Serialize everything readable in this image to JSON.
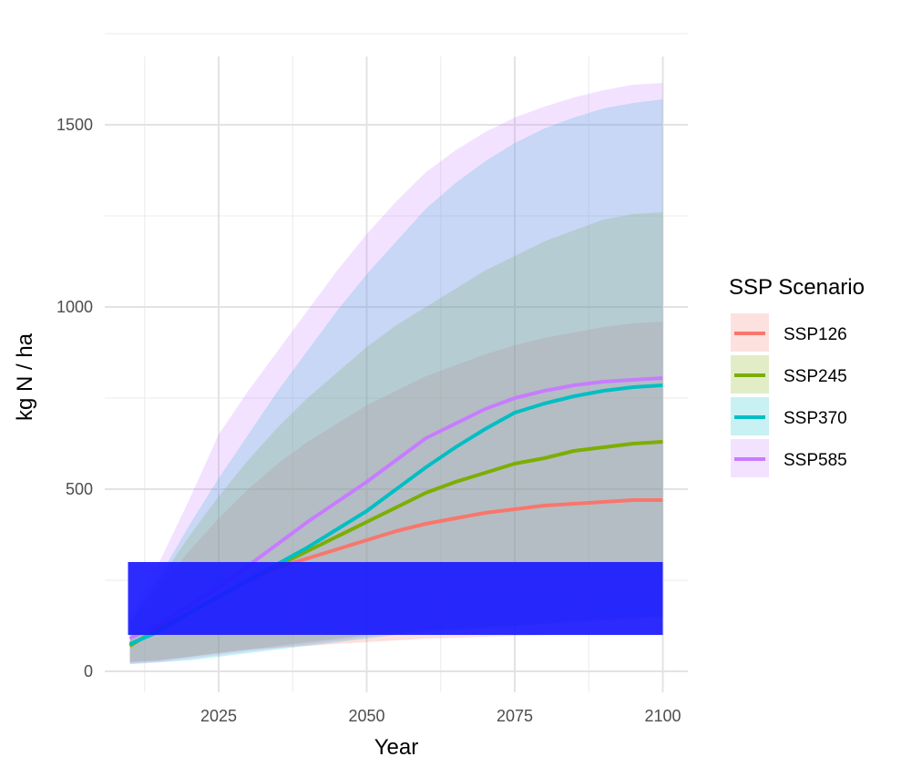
{
  "chart_data": {
    "type": "area",
    "title": "",
    "xlabel": "Year",
    "ylabel": "kg N / ha",
    "xlim": [
      2010,
      2100
    ],
    "ylim": [
      0,
      1600
    ],
    "x_ticks": [
      2025,
      2050,
      2075,
      2100
    ],
    "y_ticks": [
      0,
      500,
      1000,
      1500
    ],
    "grid": true,
    "legend": {
      "title": "SSP Scenario",
      "position": "right"
    },
    "highlight_band": {
      "x": [
        2010,
        2100
      ],
      "y": [
        100,
        300
      ],
      "color": "#1a1aff"
    },
    "series": [
      {
        "name": "SSP126",
        "color": "#f8766d",
        "x": [
          2010,
          2015,
          2020,
          2025,
          2030,
          2035,
          2040,
          2045,
          2050,
          2055,
          2060,
          2065,
          2070,
          2075,
          2080,
          2085,
          2090,
          2095,
          2100
        ],
        "mean": [
          70,
          120,
          160,
          205,
          250,
          285,
          310,
          335,
          360,
          385,
          405,
          420,
          435,
          445,
          455,
          460,
          465,
          470,
          470
        ],
        "lower": [
          25,
          30,
          40,
          50,
          60,
          65,
          70,
          75,
          80,
          85,
          90,
          92,
          95,
          97,
          99,
          100,
          100,
          100,
          100
        ],
        "upper": [
          130,
          230,
          330,
          420,
          500,
          570,
          630,
          680,
          730,
          770,
          810,
          840,
          870,
          895,
          915,
          930,
          945,
          955,
          960
        ]
      },
      {
        "name": "SSP245",
        "color": "#7cae00",
        "x": [
          2010,
          2015,
          2020,
          2025,
          2030,
          2035,
          2040,
          2045,
          2050,
          2055,
          2060,
          2065,
          2070,
          2075,
          2080,
          2085,
          2090,
          2095,
          2100
        ],
        "mean": [
          70,
          120,
          160,
          205,
          250,
          290,
          330,
          370,
          410,
          450,
          490,
          520,
          545,
          570,
          585,
          605,
          615,
          625,
          630
        ],
        "lower": [
          25,
          30,
          40,
          50,
          60,
          70,
          80,
          90,
          100,
          105,
          110,
          115,
          120,
          125,
          130,
          135,
          140,
          145,
          150
        ],
        "upper": [
          130,
          250,
          370,
          480,
          580,
          670,
          750,
          820,
          890,
          950,
          1000,
          1050,
          1100,
          1140,
          1180,
          1210,
          1240,
          1255,
          1260
        ]
      },
      {
        "name": "SSP370",
        "color": "#00bfc4",
        "x": [
          2010,
          2015,
          2020,
          2025,
          2030,
          2035,
          2040,
          2045,
          2050,
          2055,
          2060,
          2065,
          2070,
          2075,
          2080,
          2085,
          2090,
          2095,
          2100
        ],
        "mean": [
          75,
          110,
          160,
          205,
          250,
          295,
          340,
          390,
          440,
          500,
          560,
          615,
          665,
          710,
          735,
          755,
          770,
          780,
          785
        ],
        "lower": [
          20,
          25,
          30,
          40,
          50,
          60,
          70,
          80,
          90,
          100,
          110,
          115,
          120,
          125,
          130,
          135,
          140,
          145,
          150
        ],
        "upper": [
          140,
          260,
          400,
          530,
          650,
          770,
          880,
          990,
          1090,
          1180,
          1270,
          1340,
          1400,
          1450,
          1490,
          1520,
          1545,
          1560,
          1570
        ]
      },
      {
        "name": "SSP585",
        "color": "#c77cff",
        "x": [
          2010,
          2015,
          2020,
          2025,
          2030,
          2035,
          2040,
          2045,
          2050,
          2055,
          2060,
          2065,
          2070,
          2075,
          2080,
          2085,
          2090,
          2095,
          2100
        ],
        "mean": [
          90,
          130,
          180,
          230,
          290,
          350,
          410,
          465,
          520,
          580,
          640,
          680,
          720,
          750,
          770,
          785,
          795,
          800,
          805
        ],
        "lower": [
          20,
          25,
          35,
          45,
          55,
          65,
          75,
          85,
          95,
          105,
          115,
          120,
          125,
          130,
          135,
          140,
          145,
          150,
          150
        ],
        "upper": [
          160,
          300,
          470,
          650,
          770,
          880,
          990,
          1100,
          1200,
          1290,
          1370,
          1430,
          1480,
          1520,
          1550,
          1575,
          1595,
          1610,
          1615
        ]
      }
    ]
  }
}
